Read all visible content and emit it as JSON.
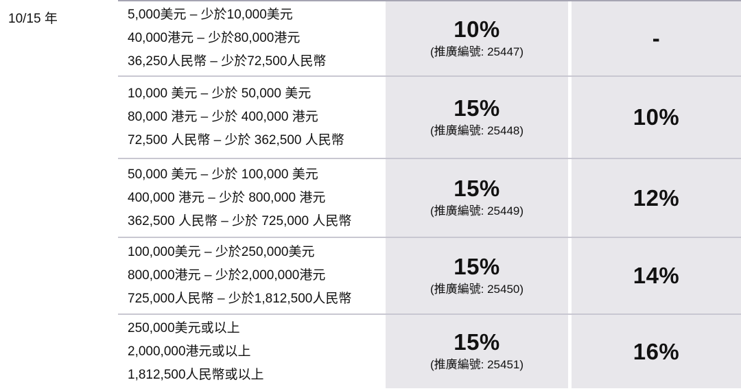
{
  "table": {
    "term_label": "10/15 年",
    "rows": [
      {
        "amounts": [
          "5,000美元 – 少於10,000美元",
          "40,000港元 – 少於80,000港元",
          "36,250人民幣 – 少於72,500人民幣"
        ],
        "rate_primary": "10%",
        "promo": "(推廣編號: 25447)",
        "rate_secondary": "-"
      },
      {
        "amounts": [
          "10,000 美元 – 少於 50,000 美元",
          "80,000 港元 – 少於 400,000 港元",
          "72,500 人民幣 – 少於 362,500 人民幣"
        ],
        "rate_primary": "15%",
        "promo": "(推廣編號: 25448)",
        "rate_secondary": "10%"
      },
      {
        "amounts": [
          "50,000 美元 – 少於 100,000 美元",
          "400,000 港元 – 少於 800,000 港元",
          "362,500 人民幣 – 少於 725,000 人民幣"
        ],
        "rate_primary": "15%",
        "promo": "(推廣編號: 25449)",
        "rate_secondary": "12%"
      },
      {
        "amounts": [
          "100,000美元 – 少於250,000美元",
          "800,000港元 – 少於2,000,000港元",
          "725,000人民幣 – 少於1,812,500人民幣"
        ],
        "rate_primary": "15%",
        "promo": "(推廣編號: 25450)",
        "rate_secondary": "14%"
      },
      {
        "amounts": [
          "250,000美元或以上",
          "2,000,000港元或以上",
          "1,812,500人民幣或以上"
        ],
        "rate_primary": "15%",
        "promo": "(推廣編號: 25451)",
        "rate_secondary": "16%"
      }
    ],
    "colors": {
      "cell_bg": "#e8e7eb",
      "divider": "#c8c7d1",
      "top_border": "#a5a4b2",
      "text": "#111111"
    }
  }
}
